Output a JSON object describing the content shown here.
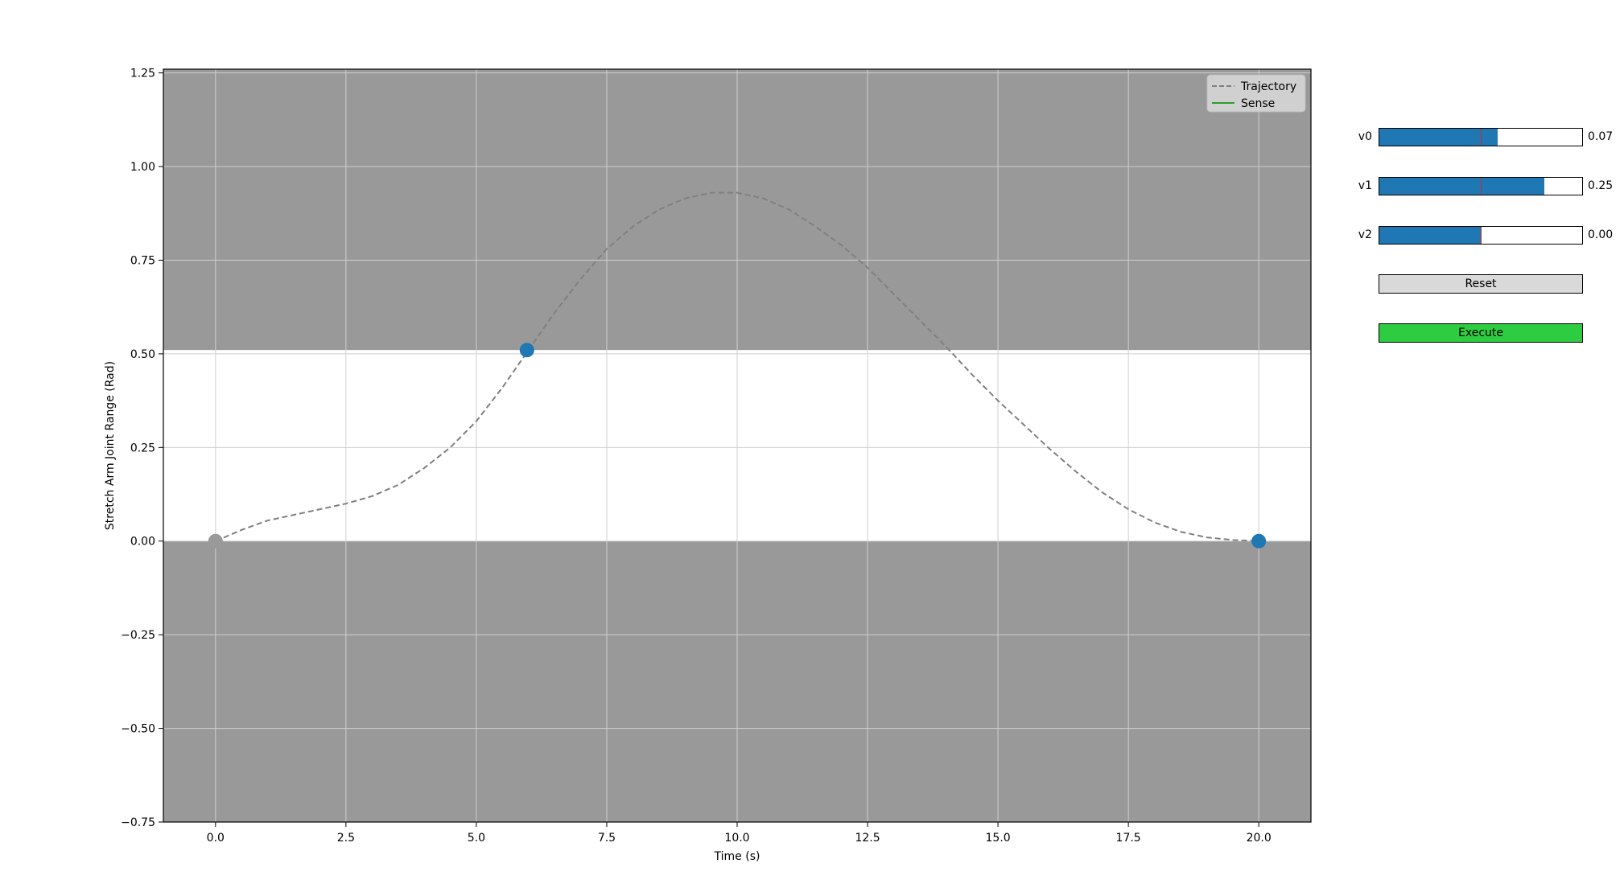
{
  "chart_data": {
    "type": "line",
    "title": "",
    "xlabel": "Time (s)",
    "ylabel": "Stretch Arm Joint Range (Rad)",
    "xlim": [
      -1.0,
      21.0
    ],
    "ylim": [
      -0.75,
      1.26
    ],
    "x_ticks": [
      "0.0",
      "2.5",
      "5.0",
      "7.5",
      "10.0",
      "12.5",
      "15.0",
      "17.5",
      "20.0"
    ],
    "x_tick_values": [
      0,
      2.5,
      5,
      7.5,
      10,
      12.5,
      15,
      17.5,
      20
    ],
    "y_ticks": [
      "−0.75",
      "−0.50",
      "−0.25",
      "0.00",
      "0.25",
      "0.50",
      "0.75",
      "1.00",
      "1.25"
    ],
    "y_tick_values": [
      -0.75,
      -0.5,
      -0.25,
      0,
      0.25,
      0.5,
      0.75,
      1.0,
      1.25
    ],
    "grid": true,
    "legend_placement": "top-right",
    "legend": [
      {
        "label": "Trajectory",
        "style": "dashed",
        "color": "#808080"
      },
      {
        "label": "Sense",
        "style": "solid",
        "color": "#2ca02c"
      }
    ],
    "allowed_band": [
      0.0,
      0.51
    ],
    "series": [
      {
        "name": "Trajectory",
        "x": [
          0,
          0.5,
          1,
          1.5,
          2,
          2.5,
          3,
          3.5,
          4,
          4.5,
          5,
          5.5,
          6,
          6.5,
          7,
          7.5,
          8,
          8.5,
          9,
          9.5,
          10,
          10.5,
          11,
          11.5,
          12,
          12.5,
          13,
          13.5,
          14,
          14.5,
          15,
          15.5,
          16,
          16.5,
          17,
          17.5,
          18,
          18.5,
          19,
          19.5,
          20
        ],
        "y": [
          0.0,
          0.03,
          0.055,
          0.07,
          0.085,
          0.1,
          0.12,
          0.15,
          0.195,
          0.25,
          0.32,
          0.41,
          0.51,
          0.61,
          0.7,
          0.78,
          0.84,
          0.885,
          0.915,
          0.93,
          0.93,
          0.915,
          0.885,
          0.84,
          0.79,
          0.73,
          0.66,
          0.59,
          0.52,
          0.445,
          0.375,
          0.31,
          0.245,
          0.185,
          0.13,
          0.085,
          0.05,
          0.025,
          0.01,
          0.003,
          0.0
        ]
      }
    ],
    "control_points": [
      {
        "x": 0,
        "y": 0.0,
        "color": "#9a9a9a"
      },
      {
        "x": 5.97,
        "y": 0.51,
        "color": "#1f77b4"
      },
      {
        "x": 20,
        "y": 0.0,
        "color": "#1f77b4"
      }
    ],
    "colors": {
      "shaded_region": "#999999",
      "grid": "#cfcfcf",
      "trajectory": "#808080",
      "sense": "#2ca02c",
      "point": "#1f77b4"
    }
  },
  "controls": {
    "sliders": [
      {
        "label": "v0",
        "value_text": "0.07",
        "fill_fraction": 0.585
      },
      {
        "label": "v1",
        "value_text": "0.25",
        "fill_fraction": 0.815
      },
      {
        "label": "v2",
        "value_text": "0.00",
        "fill_fraction": 0.5
      }
    ],
    "reset_label": "Reset",
    "execute_label": "Execute",
    "colors": {
      "slider_fill": "#1f77b4",
      "slider_init": "#d62728",
      "reset_bg": "#d9d9d9",
      "execute_bg": "#2ecc40"
    }
  }
}
